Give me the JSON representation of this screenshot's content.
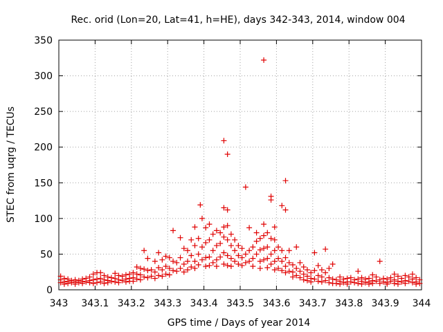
{
  "chart_data": {
    "type": "scatter",
    "title": "Rec. orid (Lon=20, Lat=41, h=HE), days 342-343, 2014, window 004",
    "xlabel": "GPS time / Days of year 2014",
    "ylabel": "STEC from uqrg / TECUs",
    "xlim": [
      343,
      344
    ],
    "ylim": [
      0,
      350
    ],
    "x_ticks": [
      343,
      343.1,
      343.2,
      343.3,
      343.4,
      343.5,
      343.6,
      343.7,
      343.8,
      343.9,
      344
    ],
    "x_tick_labels": [
      "343",
      "343.1",
      "343.2",
      "343.3",
      "343.4",
      "343.5",
      "343.6",
      "343.7",
      "343.8",
      "343.9",
      "344"
    ],
    "y_ticks": [
      0,
      50,
      100,
      150,
      200,
      250,
      300,
      350
    ],
    "y_tick_labels": [
      "0",
      "50",
      "100",
      "150",
      "200",
      "250",
      "300",
      "350"
    ],
    "grid": true,
    "marker": "+",
    "color": "#e00000",
    "series": [
      {
        "name": "STEC",
        "points": [
          [
            343.005,
            19
          ],
          [
            343.005,
            14
          ],
          [
            343.005,
            10
          ],
          [
            343.015,
            16
          ],
          [
            343.015,
            11
          ],
          [
            343.015,
            8
          ],
          [
            343.025,
            15
          ],
          [
            343.025,
            12
          ],
          [
            343.025,
            9
          ],
          [
            343.035,
            13
          ],
          [
            343.035,
            10
          ],
          [
            343.045,
            14
          ],
          [
            343.045,
            11
          ],
          [
            343.045,
            8
          ],
          [
            343.055,
            13
          ],
          [
            343.055,
            10
          ],
          [
            343.065,
            15
          ],
          [
            343.065,
            12
          ],
          [
            343.065,
            9
          ],
          [
            343.075,
            16
          ],
          [
            343.075,
            11
          ],
          [
            343.085,
            18
          ],
          [
            343.085,
            13
          ],
          [
            343.085,
            10
          ],
          [
            343.095,
            22
          ],
          [
            343.095,
            14
          ],
          [
            343.095,
            9
          ],
          [
            343.105,
            24
          ],
          [
            343.105,
            15
          ],
          [
            343.105,
            10
          ],
          [
            343.115,
            24
          ],
          [
            343.115,
            16
          ],
          [
            343.115,
            11
          ],
          [
            343.125,
            20
          ],
          [
            343.125,
            14
          ],
          [
            343.125,
            9
          ],
          [
            343.135,
            18
          ],
          [
            343.135,
            13
          ],
          [
            343.135,
            10
          ],
          [
            343.145,
            17
          ],
          [
            343.145,
            12
          ],
          [
            343.155,
            23
          ],
          [
            343.155,
            16
          ],
          [
            343.155,
            11
          ],
          [
            343.165,
            20
          ],
          [
            343.165,
            14
          ],
          [
            343.165,
            10
          ],
          [
            343.175,
            19
          ],
          [
            343.175,
            13
          ],
          [
            343.185,
            21
          ],
          [
            343.185,
            15
          ],
          [
            343.185,
            11
          ],
          [
            343.195,
            22
          ],
          [
            343.195,
            16
          ],
          [
            343.195,
            12
          ],
          [
            343.205,
            24
          ],
          [
            343.205,
            17
          ],
          [
            343.205,
            12
          ],
          [
            343.215,
            32
          ],
          [
            343.215,
            22
          ],
          [
            343.215,
            15
          ],
          [
            343.225,
            30
          ],
          [
            343.225,
            21
          ],
          [
            343.225,
            14
          ],
          [
            343.235,
            55
          ],
          [
            343.235,
            29
          ],
          [
            343.235,
            18
          ],
          [
            343.245,
            44
          ],
          [
            343.245,
            27
          ],
          [
            343.245,
            17
          ],
          [
            343.255,
            28
          ],
          [
            343.255,
            19
          ],
          [
            343.265,
            40
          ],
          [
            343.265,
            25
          ],
          [
            343.265,
            16
          ],
          [
            343.275,
            52
          ],
          [
            343.275,
            31
          ],
          [
            343.275,
            20
          ],
          [
            343.285,
            42
          ],
          [
            343.285,
            28
          ],
          [
            343.285,
            19
          ],
          [
            343.295,
            47
          ],
          [
            343.295,
            33
          ],
          [
            343.295,
            22
          ],
          [
            343.305,
            45
          ],
          [
            343.305,
            30
          ],
          [
            343.305,
            21
          ],
          [
            343.315,
            83
          ],
          [
            343.315,
            40
          ],
          [
            343.315,
            27
          ],
          [
            343.325,
            38
          ],
          [
            343.325,
            26
          ],
          [
            343.335,
            73
          ],
          [
            343.335,
            45
          ],
          [
            343.335,
            30
          ],
          [
            343.345,
            58
          ],
          [
            343.345,
            36
          ],
          [
            343.345,
            25
          ],
          [
            343.355,
            55
          ],
          [
            343.355,
            40
          ],
          [
            343.355,
            28
          ],
          [
            343.365,
            70
          ],
          [
            343.365,
            48
          ],
          [
            343.365,
            32
          ],
          [
            343.375,
            88
          ],
          [
            343.375,
            62
          ],
          [
            343.375,
            40
          ],
          [
            343.375,
            30
          ],
          [
            343.385,
            72
          ],
          [
            343.385,
            50
          ],
          [
            343.385,
            35
          ],
          [
            343.39,
            119
          ],
          [
            343.395,
            100
          ],
          [
            343.395,
            60
          ],
          [
            343.395,
            42
          ],
          [
            343.405,
            87
          ],
          [
            343.405,
            66
          ],
          [
            343.405,
            45
          ],
          [
            343.405,
            33
          ],
          [
            343.415,
            92
          ],
          [
            343.415,
            70
          ],
          [
            343.415,
            46
          ],
          [
            343.415,
            34
          ],
          [
            343.425,
            78
          ],
          [
            343.425,
            55
          ],
          [
            343.425,
            38
          ],
          [
            343.435,
            83
          ],
          [
            343.435,
            62
          ],
          [
            343.435,
            42
          ],
          [
            343.435,
            33
          ],
          [
            343.445,
            80
          ],
          [
            343.445,
            65
          ],
          [
            343.445,
            46
          ],
          [
            343.455,
            209
          ],
          [
            343.455,
            115
          ],
          [
            343.455,
            88
          ],
          [
            343.455,
            74
          ],
          [
            343.455,
            52
          ],
          [
            343.455,
            36
          ],
          [
            343.465,
            190
          ],
          [
            343.465,
            112
          ],
          [
            343.465,
            90
          ],
          [
            343.465,
            70
          ],
          [
            343.465,
            48
          ],
          [
            343.465,
            34
          ],
          [
            343.475,
            78
          ],
          [
            343.475,
            62
          ],
          [
            343.475,
            44
          ],
          [
            343.475,
            33
          ],
          [
            343.485,
            70
          ],
          [
            343.485,
            55
          ],
          [
            343.485,
            40
          ],
          [
            343.495,
            62
          ],
          [
            343.495,
            48
          ],
          [
            343.495,
            36
          ],
          [
            343.505,
            58
          ],
          [
            343.505,
            45
          ],
          [
            343.505,
            34
          ],
          [
            343.515,
            144
          ],
          [
            343.515,
            50
          ],
          [
            343.515,
            38
          ],
          [
            343.525,
            87
          ],
          [
            343.525,
            55
          ],
          [
            343.525,
            40
          ],
          [
            343.535,
            60
          ],
          [
            343.535,
            44
          ],
          [
            343.535,
            33
          ],
          [
            343.545,
            80
          ],
          [
            343.545,
            68
          ],
          [
            343.545,
            50
          ],
          [
            343.555,
            72
          ],
          [
            343.555,
            56
          ],
          [
            343.555,
            40
          ],
          [
            343.555,
            30
          ],
          [
            343.565,
            322
          ],
          [
            343.565,
            92
          ],
          [
            343.565,
            76
          ],
          [
            343.565,
            58
          ],
          [
            343.565,
            42
          ],
          [
            343.575,
            80
          ],
          [
            343.575,
            60
          ],
          [
            343.575,
            44
          ],
          [
            343.575,
            31
          ],
          [
            343.585,
            131
          ],
          [
            343.585,
            126
          ],
          [
            343.585,
            72
          ],
          [
            343.585,
            50
          ],
          [
            343.585,
            36
          ],
          [
            343.595,
            88
          ],
          [
            343.595,
            70
          ],
          [
            343.595,
            55
          ],
          [
            343.595,
            40
          ],
          [
            343.595,
            28
          ],
          [
            343.605,
            60
          ],
          [
            343.605,
            44
          ],
          [
            343.605,
            30
          ],
          [
            343.615,
            118
          ],
          [
            343.615,
            55
          ],
          [
            343.615,
            40
          ],
          [
            343.615,
            27
          ],
          [
            343.625,
            153
          ],
          [
            343.625,
            112
          ],
          [
            343.625,
            45
          ],
          [
            343.625,
            33
          ],
          [
            343.625,
            24
          ],
          [
            343.635,
            55
          ],
          [
            343.635,
            38
          ],
          [
            343.635,
            26
          ],
          [
            343.645,
            35
          ],
          [
            343.645,
            25
          ],
          [
            343.645,
            18
          ],
          [
            343.655,
            60
          ],
          [
            343.655,
            30
          ],
          [
            343.655,
            20
          ],
          [
            343.665,
            38
          ],
          [
            343.665,
            26
          ],
          [
            343.665,
            17
          ],
          [
            343.675,
            32
          ],
          [
            343.675,
            22
          ],
          [
            343.675,
            14
          ],
          [
            343.685,
            28
          ],
          [
            343.685,
            19
          ],
          [
            343.685,
            13
          ],
          [
            343.695,
            24
          ],
          [
            343.695,
            16
          ],
          [
            343.695,
            11
          ],
          [
            343.705,
            52
          ],
          [
            343.705,
            27
          ],
          [
            343.705,
            15
          ],
          [
            343.715,
            34
          ],
          [
            343.715,
            20
          ],
          [
            343.715,
            12
          ],
          [
            343.725,
            28
          ],
          [
            343.725,
            18
          ],
          [
            343.725,
            11
          ],
          [
            343.735,
            57
          ],
          [
            343.735,
            24
          ],
          [
            343.735,
            13
          ],
          [
            343.745,
            30
          ],
          [
            343.745,
            17
          ],
          [
            343.745,
            10
          ],
          [
            343.755,
            36
          ],
          [
            343.755,
            15
          ],
          [
            343.755,
            9
          ],
          [
            343.765,
            14
          ],
          [
            343.765,
            9
          ],
          [
            343.775,
            18
          ],
          [
            343.775,
            12
          ],
          [
            343.775,
            8
          ],
          [
            343.785,
            15
          ],
          [
            343.785,
            10
          ],
          [
            343.795,
            16
          ],
          [
            343.795,
            11
          ],
          [
            343.795,
            8
          ],
          [
            343.805,
            17
          ],
          [
            343.805,
            11
          ],
          [
            343.815,
            14
          ],
          [
            343.815,
            10
          ],
          [
            343.825,
            26
          ],
          [
            343.825,
            15
          ],
          [
            343.825,
            9
          ],
          [
            343.835,
            17
          ],
          [
            343.835,
            12
          ],
          [
            343.835,
            8
          ],
          [
            343.845,
            15
          ],
          [
            343.845,
            10
          ],
          [
            343.855,
            16
          ],
          [
            343.855,
            11
          ],
          [
            343.855,
            8
          ],
          [
            343.865,
            21
          ],
          [
            343.865,
            13
          ],
          [
            343.865,
            9
          ],
          [
            343.875,
            18
          ],
          [
            343.875,
            12
          ],
          [
            343.885,
            40
          ],
          [
            343.885,
            14
          ],
          [
            343.885,
            9
          ],
          [
            343.895,
            16
          ],
          [
            343.895,
            11
          ],
          [
            343.905,
            15
          ],
          [
            343.905,
            10
          ],
          [
            343.905,
            8
          ],
          [
            343.915,
            17
          ],
          [
            343.915,
            12
          ],
          [
            343.925,
            22
          ],
          [
            343.925,
            14
          ],
          [
            343.925,
            9
          ],
          [
            343.935,
            19
          ],
          [
            343.935,
            12
          ],
          [
            343.935,
            8
          ],
          [
            343.945,
            16
          ],
          [
            343.945,
            11
          ],
          [
            343.955,
            20
          ],
          [
            343.955,
            13
          ],
          [
            343.955,
            9
          ],
          [
            343.965,
            18
          ],
          [
            343.965,
            12
          ],
          [
            343.975,
            22
          ],
          [
            343.975,
            15
          ],
          [
            343.975,
            10
          ],
          [
            343.985,
            17
          ],
          [
            343.985,
            11
          ],
          [
            343.985,
            8
          ],
          [
            343.995,
            14
          ],
          [
            343.995,
            9
          ]
        ]
      }
    ]
  }
}
